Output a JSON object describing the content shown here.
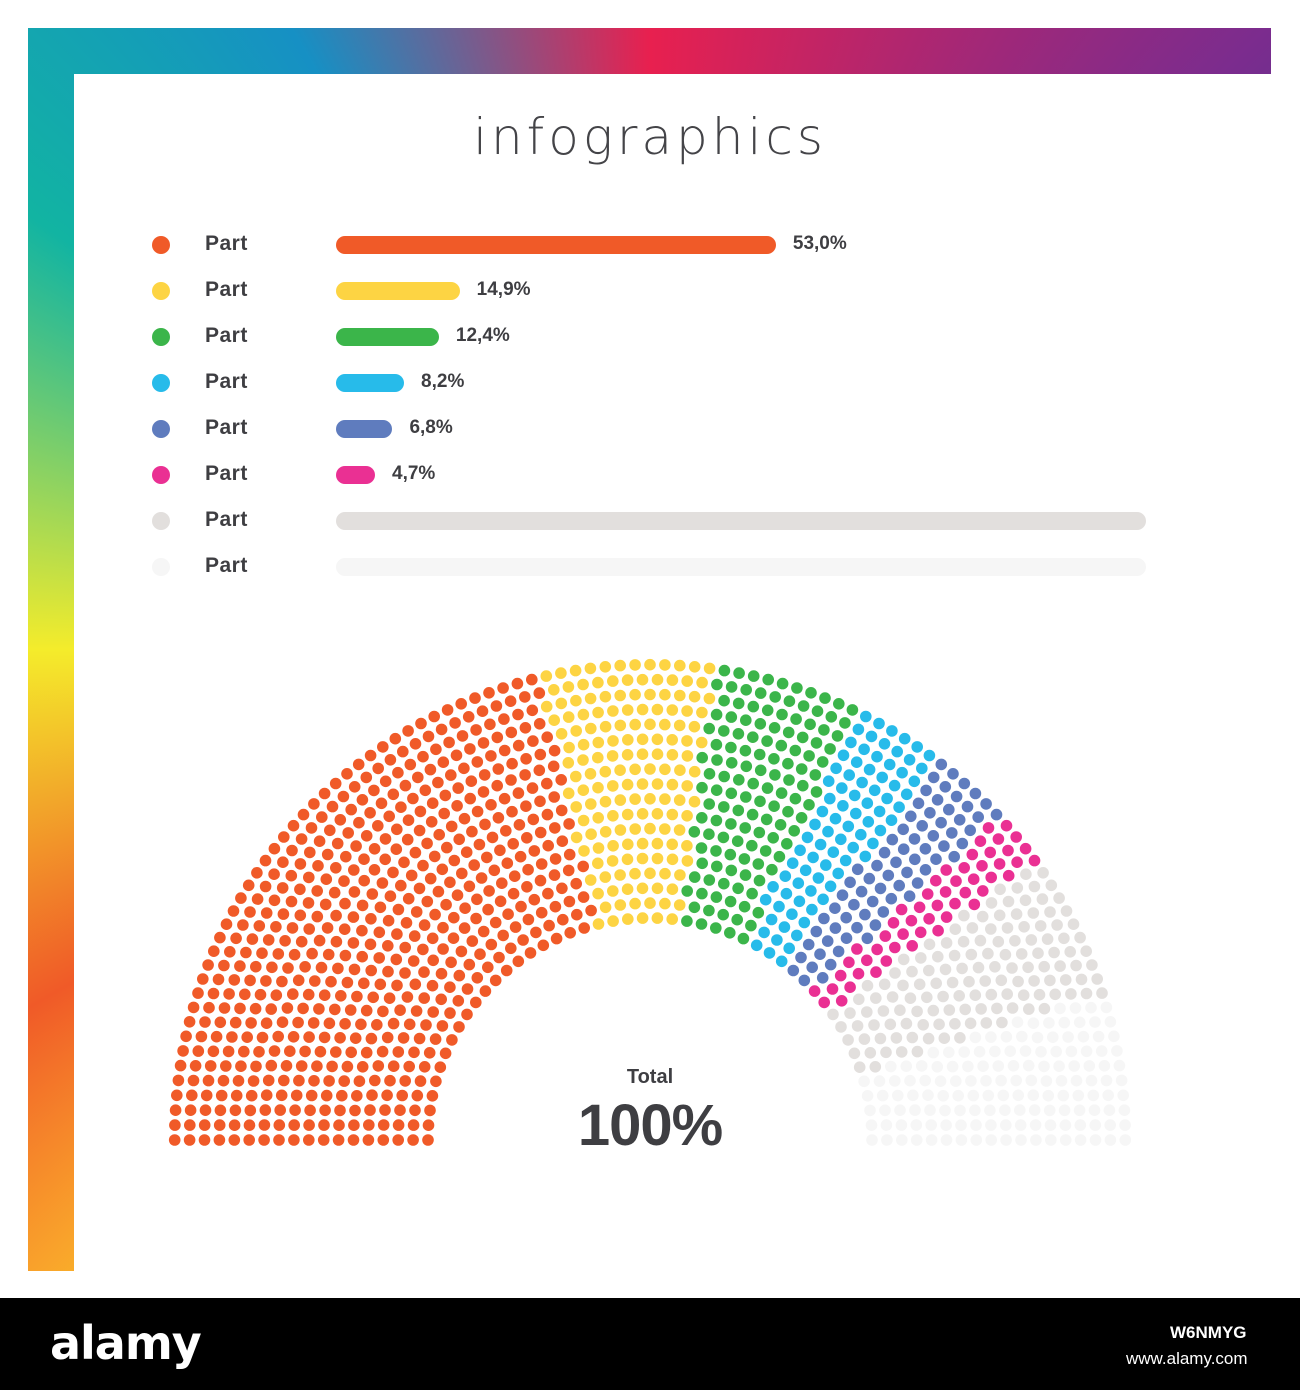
{
  "chart_data": {
    "type": "bar",
    "title": "infographics",
    "categories": [
      "Part",
      "Part",
      "Part",
      "Part",
      "Part",
      "Part",
      "Part",
      "Part"
    ],
    "values": [
      53.0,
      14.9,
      12.4,
      8.2,
      6.8,
      4.7,
      null,
      null
    ],
    "value_labels": [
      "53,0%",
      "14,9%",
      "12,4%",
      "8,2%",
      "6,8%",
      "4,7%",
      "",
      ""
    ],
    "colors": [
      "#f05a28",
      "#fdd443",
      "#3bb54a",
      "#27bbea",
      "#5f7cbe",
      "#ea3093",
      "#e2dfdd",
      "#f6f6f6"
    ],
    "semicircle_shares": [
      53.0,
      14.9,
      12.4,
      8.2,
      6.8,
      4.7
    ]
  },
  "total": {
    "label": "Total",
    "value": "100%"
  },
  "footer": {
    "brand": "alamy",
    "code": "W6NMYG",
    "url": "www.alamy.com"
  }
}
